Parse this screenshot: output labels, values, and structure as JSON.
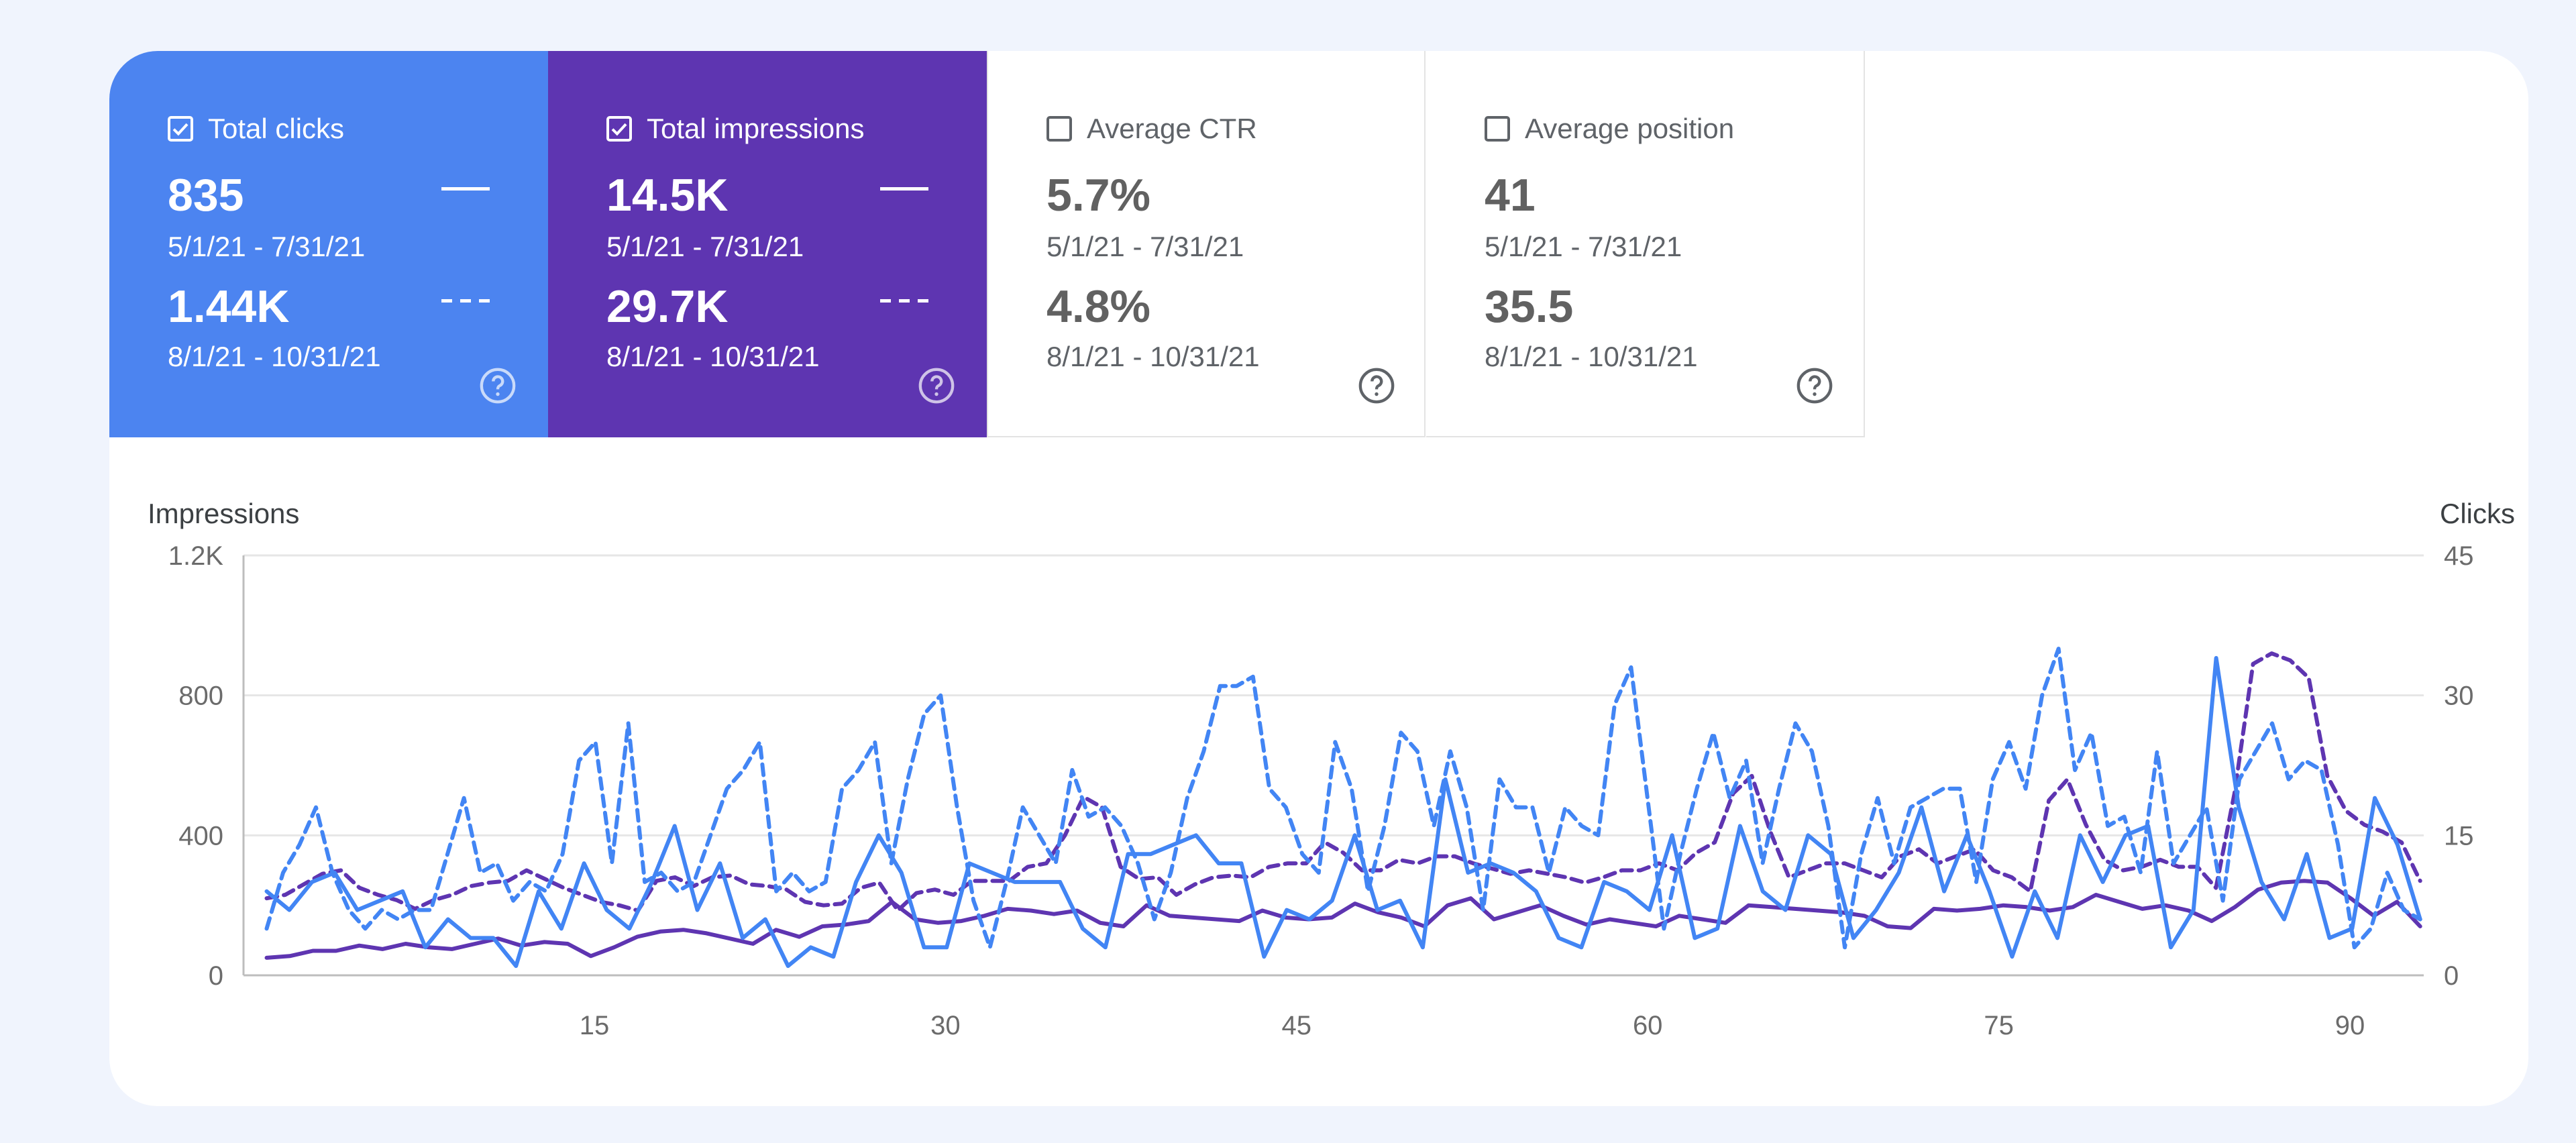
{
  "metrics": [
    {
      "label": "Total clicks",
      "checked": true,
      "value1": "835",
      "date1": "5/1/21 - 7/31/21",
      "value2": "1.44K",
      "date2": "8/1/21 - 10/31/21"
    },
    {
      "label": "Total impressions",
      "checked": true,
      "value1": "14.5K",
      "date1": "5/1/21 - 7/31/21",
      "value2": "29.7K",
      "date2": "8/1/21 - 10/31/21"
    },
    {
      "label": "Average CTR",
      "checked": false,
      "value1": "5.7%",
      "date1": "5/1/21 - 7/31/21",
      "value2": "4.8%",
      "date2": "8/1/21 - 10/31/21"
    },
    {
      "label": "Average position",
      "checked": false,
      "value1": "41",
      "date1": "5/1/21 - 7/31/21",
      "value2": "35.5",
      "date2": "8/1/21 - 10/31/21"
    }
  ],
  "colors": {
    "clicks": "#4285f4",
    "impressions": "#5e35b1",
    "tile_clicks": "#4c84f0",
    "tile_impressions": "#5e35b1"
  },
  "chart_data": {
    "type": "line",
    "ylabel_left": "Impressions",
    "ylabel_right": "Clicks",
    "ylim_left": [
      0,
      1200
    ],
    "ylim_right": [
      0,
      45
    ],
    "yticks_left": [
      "0",
      "400",
      "800",
      "1.2K"
    ],
    "yticks_right": [
      "0",
      "15",
      "30",
      "45"
    ],
    "xticks": [
      "15",
      "30",
      "45",
      "60",
      "75",
      "90"
    ],
    "x_start": 1,
    "series": [
      {
        "name": "Total impressions (5/1/21 - 7/31/21)",
        "axis": "left",
        "style": "solid",
        "color": "#5e35b1",
        "values": [
          50,
          55,
          70,
          70,
          85,
          75,
          90,
          80,
          75,
          90,
          105,
          85,
          95,
          90,
          55,
          80,
          110,
          125,
          130,
          120,
          105,
          90,
          130,
          110,
          140,
          145,
          155,
          210,
          160,
          150,
          155,
          170,
          190,
          185,
          175,
          185,
          150,
          140,
          200,
          170,
          165,
          160,
          155,
          185,
          165,
          160,
          165,
          205,
          180,
          165,
          140,
          200,
          220,
          160,
          180,
          200,
          170,
          145,
          160,
          150,
          140,
          170,
          160,
          150,
          200,
          195,
          190,
          185,
          180,
          170,
          140,
          135,
          190,
          185,
          190,
          200,
          195,
          185,
          195,
          230,
          210,
          190,
          200,
          185,
          155,
          195,
          245,
          265,
          270,
          265,
          220,
          170,
          210,
          140
        ]
      },
      {
        "name": "Total impressions (8/1/21 - 10/31/21)",
        "axis": "left",
        "style": "dashed",
        "color": "#5e35b1",
        "values": [
          220,
          230,
          260,
          290,
          300,
          250,
          230,
          215,
          190,
          215,
          230,
          255,
          265,
          270,
          300,
          275,
          250,
          230,
          210,
          200,
          185,
          270,
          280,
          255,
          280,
          285,
          260,
          255,
          245,
          210,
          200,
          205,
          250,
          265,
          185,
          235,
          245,
          230,
          270,
          270,
          270,
          310,
          320,
          400,
          510,
          480,
          310,
          275,
          280,
          230,
          260,
          280,
          285,
          280,
          310,
          320,
          320,
          380,
          350,
          300,
          300,
          330,
          320,
          340,
          340,
          320,
          305,
          290,
          300,
          290,
          280,
          265,
          280,
          300,
          300,
          320,
          300,
          350,
          380,
          520,
          570,
          410,
          280,
          300,
          320,
          320,
          300,
          280,
          340,
          360,
          320,
          340,
          360,
          300,
          280,
          240,
          500,
          560,
          430,
          330,
          300,
          310,
          330,
          310,
          310,
          250,
          520,
          890,
          920,
          900,
          850,
          570,
          470,
          430,
          410,
          380,
          270
        ]
      },
      {
        "name": "Total clicks (5/1/21 - 7/31/21)",
        "axis": "right",
        "style": "solid",
        "color": "#4285f4",
        "values": [
          9,
          7,
          10,
          11,
          7,
          8,
          9,
          3,
          6,
          4,
          4,
          1,
          9,
          5,
          12,
          7,
          5,
          10,
          16,
          7,
          12,
          4,
          6,
          1,
          3,
          2,
          10,
          15,
          11,
          3,
          3,
          12,
          11,
          10,
          10,
          10,
          5,
          3,
          13,
          13,
          14,
          15,
          12,
          12,
          2,
          7,
          6,
          8,
          15,
          7,
          8,
          3,
          21,
          11,
          12,
          11,
          9,
          4,
          3,
          10,
          9,
          7,
          15,
          4,
          5,
          16,
          9,
          7,
          15,
          13,
          4,
          7,
          11,
          18,
          9,
          15,
          9,
          2,
          9,
          4,
          15,
          10,
          15,
          16,
          3,
          7,
          34,
          18,
          10,
          6,
          13,
          4,
          5,
          19,
          14,
          6
        ]
      },
      {
        "name": "Total clicks (8/1/21 - 10/31/21)",
        "axis": "right",
        "style": "dashed",
        "color": "#4285f4",
        "values": [
          5,
          11,
          14,
          18,
          11,
          7,
          5,
          7,
          6,
          7,
          7,
          13,
          19,
          11,
          12,
          8,
          10,
          9,
          13,
          23,
          25,
          12,
          27,
          10,
          11,
          9,
          10,
          15,
          20,
          22,
          25,
          9,
          11,
          9,
          10,
          20,
          22,
          25,
          12,
          21,
          28,
          30,
          18,
          8,
          3,
          10,
          18,
          15,
          12,
          22,
          17,
          18,
          16,
          12,
          6,
          11,
          19,
          24,
          31,
          31,
          32,
          20,
          18,
          13,
          11,
          25,
          20,
          9,
          16,
          26,
          24,
          16,
          24,
          18,
          7,
          21,
          18,
          18,
          11,
          18,
          16,
          15,
          29,
          33,
          19,
          5,
          13,
          20,
          26,
          19,
          23,
          12,
          20,
          27,
          24,
          16,
          3,
          13,
          19,
          12,
          18,
          19,
          20,
          20,
          10,
          21,
          25,
          20,
          30,
          35,
          22,
          26,
          16,
          17,
          11,
          24,
          12,
          15,
          18,
          8,
          21,
          24,
          27,
          21,
          23,
          22,
          14,
          3,
          5,
          11,
          7,
          6
        ]
      }
    ]
  }
}
